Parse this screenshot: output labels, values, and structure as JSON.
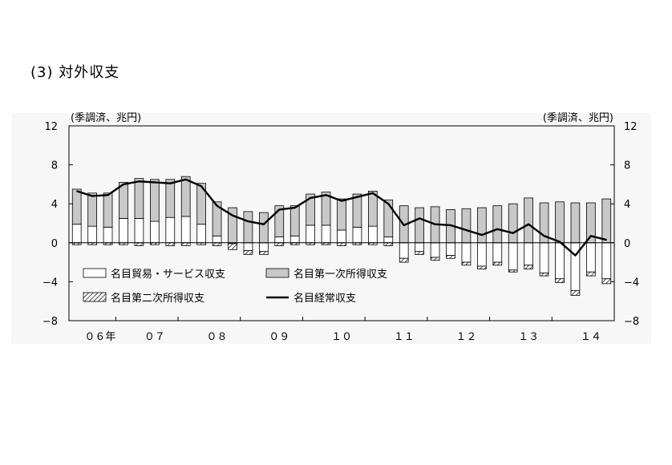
{
  "section_title": "(3) 対外収支",
  "chart_data": {
    "type": "bar",
    "unit_left": "(季調済、兆円)",
    "unit_right": "(季調済、兆円)",
    "ylim": [
      -8,
      12
    ],
    "y_ticks": [
      "12",
      "8",
      "4",
      "0",
      "−4",
      "−8"
    ],
    "y_tick_values": [
      12,
      8,
      4,
      0,
      -4,
      -8
    ],
    "year_labels": [
      {
        "label": "０６年",
        "index": 2
      },
      {
        "label": "０７",
        "index": 5.5
      },
      {
        "label": "０８",
        "index": 9.5
      },
      {
        "label": "０９",
        "index": 13.5
      },
      {
        "label": "１０",
        "index": 17.5
      },
      {
        "label": "１１",
        "index": 21.5
      },
      {
        "label": "１２",
        "index": 25.5
      },
      {
        "label": "１３",
        "index": 29.5
      },
      {
        "label": "１４",
        "index": 33.5
      }
    ],
    "year_boundaries": [
      3,
      7,
      11,
      15,
      19,
      23,
      27,
      31
    ],
    "legend": [
      {
        "name": "名目貿易・サービス収支",
        "swatch": "white"
      },
      {
        "name": "名目第一次所得収支",
        "swatch": "gray"
      },
      {
        "name": "名目第二次所得収支",
        "swatch": "hatch"
      },
      {
        "name": "名目経常収支",
        "swatch": "line"
      }
    ],
    "series": [
      {
        "name": "名目貿易・サービス収支",
        "values": [
          1.9,
          1.7,
          1.6,
          2.5,
          2.5,
          2.2,
          2.6,
          2.7,
          1.9,
          0.7,
          -0.1,
          -0.8,
          -0.9,
          0.6,
          0.7,
          1.8,
          1.8,
          1.3,
          1.6,
          1.7,
          0.6,
          -1.6,
          -0.9,
          -1.5,
          -1.3,
          -2.0,
          -2.4,
          -2.0,
          -2.8,
          -2.3,
          -3.1,
          -3.7,
          -4.9,
          -3.0,
          -3.7
        ]
      },
      {
        "name": "名目第一次所得収支",
        "values": [
          3.6,
          3.4,
          3.5,
          3.7,
          4.1,
          4.3,
          3.9,
          4.1,
          4.2,
          3.5,
          3.6,
          3.2,
          3.1,
          3.2,
          3.1,
          3.2,
          3.4,
          3.2,
          3.4,
          3.6,
          3.8,
          3.8,
          3.6,
          3.7,
          3.4,
          3.5,
          3.6,
          3.8,
          4.0,
          4.6,
          4.1,
          4.2,
          4.1,
          4.1,
          4.5
        ]
      },
      {
        "name": "名目第二次所得収支",
        "values": [
          -0.2,
          -0.2,
          -0.2,
          -0.2,
          -0.3,
          -0.2,
          -0.3,
          -0.3,
          -0.2,
          -0.3,
          -0.6,
          -0.4,
          -0.3,
          -0.3,
          -0.2,
          -0.2,
          -0.2,
          -0.3,
          -0.2,
          -0.2,
          -0.3,
          -0.4,
          -0.3,
          -0.3,
          -0.3,
          -0.3,
          -0.3,
          -0.3,
          -0.2,
          -0.4,
          -0.3,
          -0.4,
          -0.5,
          -0.4,
          -0.5
        ]
      },
      {
        "name": "名目経常収支",
        "values": [
          5.3,
          4.8,
          4.9,
          6.0,
          6.3,
          6.2,
          6.1,
          6.5,
          5.8,
          3.8,
          2.8,
          2.2,
          1.9,
          3.4,
          3.6,
          4.6,
          4.9,
          4.3,
          4.7,
          5.1,
          4.0,
          1.8,
          2.5,
          1.9,
          1.8,
          1.3,
          0.8,
          1.4,
          1.0,
          1.9,
          0.7,
          0.1,
          -1.3,
          0.7,
          0.3
        ]
      }
    ]
  }
}
